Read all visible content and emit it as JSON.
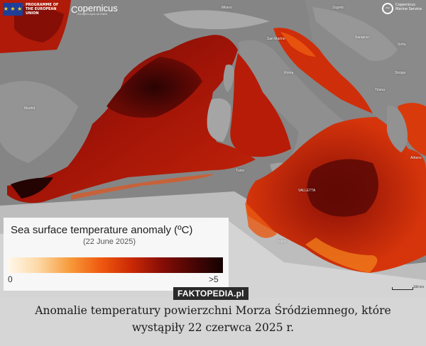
{
  "header": {
    "eu_logo_text": "PROGRAMME OF THE EUROPEAN UNION",
    "copernicus_logo": "opernicus",
    "copernicus_sub": "Europe's eyes on Earth",
    "cms_logo_text": "Copernicus Marine Service"
  },
  "place_labels": {
    "milan": "Milano",
    "zagreb": "Zagreb",
    "sarajevo": "Sarajevo",
    "san_marino": "San Marino",
    "sofia": "Sofia",
    "skopje": "Skopje",
    "tirana": "Tirana",
    "athens": "Athens",
    "valletta": "VALLETTA",
    "tunis": "Tunis",
    "tripoli": "Tripoli",
    "madrid": "Madrid",
    "rome": "Roma"
  },
  "legend": {
    "title": "Sea surface temperature anomaly (ºC)",
    "date": "(22 June 2025)",
    "min_label": "0",
    "max_label": ">5",
    "colors": [
      "#fff8ec",
      "#fcd9a6",
      "#f79a3a",
      "#f05a10",
      "#cc2a05",
      "#8a0e06",
      "#4a0504",
      "#140202"
    ]
  },
  "scale_label": "100 km",
  "watermark": "FAKTOPEDIA.pl",
  "caption": {
    "line1": "Anomalie temperatury powierzchni Morza Śródziemnego, które",
    "line2": "wystąpiły 22 czerwca 2025 r."
  }
}
